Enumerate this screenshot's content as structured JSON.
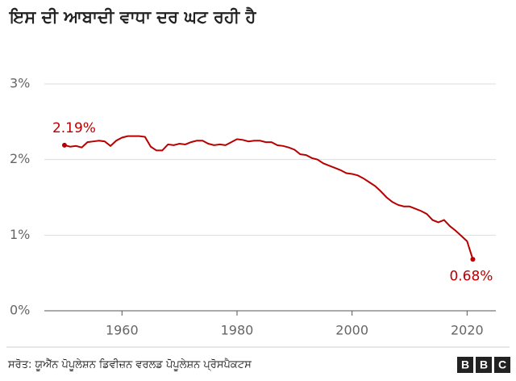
{
  "chart_data": {
    "type": "line",
    "title": "ਇਸ ਦੀ ਆਬਾਦੀ ਵਾਧਾ ਦਰ ਘਟ ਰਹੀ ਹੈ",
    "source": "ਸਰੋਤ: ਯੂਐੱਨ ਪੋਪੂਲੇਸ਼ਨ ਡਿਵੀਜ਼ਨ ਵਰਲਡ ਪੋਪੂਲੇਸ਼ਨ ਪ੍ਰੋਸਪੈਕਟਸ",
    "logo": [
      "B",
      "B",
      "C"
    ],
    "color": "#b80000",
    "x": [
      1950,
      1951,
      1952,
      1953,
      1954,
      1955,
      1956,
      1957,
      1958,
      1959,
      1960,
      1961,
      1962,
      1963,
      1964,
      1965,
      1966,
      1967,
      1968,
      1969,
      1970,
      1971,
      1972,
      1973,
      1974,
      1975,
      1976,
      1977,
      1978,
      1979,
      1980,
      1981,
      1982,
      1983,
      1984,
      1985,
      1986,
      1987,
      1988,
      1989,
      1990,
      1991,
      1992,
      1993,
      1994,
      1995,
      1996,
      1997,
      1998,
      1999,
      2000,
      2001,
      2002,
      2003,
      2004,
      2005,
      2006,
      2007,
      2008,
      2009,
      2010,
      2011,
      2012,
      2013,
      2014,
      2015,
      2016,
      2017,
      2018,
      2019,
      2020,
      2021
    ],
    "values": [
      2.19,
      2.17,
      2.18,
      2.16,
      2.23,
      2.24,
      2.25,
      2.24,
      2.18,
      2.25,
      2.29,
      2.31,
      2.31,
      2.31,
      2.3,
      2.17,
      2.12,
      2.12,
      2.2,
      2.19,
      2.21,
      2.2,
      2.23,
      2.25,
      2.25,
      2.21,
      2.19,
      2.2,
      2.19,
      2.23,
      2.27,
      2.26,
      2.24,
      2.25,
      2.25,
      2.23,
      2.23,
      2.19,
      2.18,
      2.16,
      2.13,
      2.07,
      2.06,
      2.02,
      2.0,
      1.95,
      1.92,
      1.89,
      1.86,
      1.82,
      1.81,
      1.79,
      1.75,
      1.7,
      1.65,
      1.58,
      1.5,
      1.44,
      1.4,
      1.38,
      1.38,
      1.35,
      1.32,
      1.28,
      1.2,
      1.17,
      1.2,
      1.12,
      1.06,
      0.99,
      0.92,
      0.68
    ],
    "value_labels": [
      "2.19%",
      null,
      null,
      null,
      null,
      null,
      null,
      null,
      null,
      null,
      null,
      null,
      null,
      null,
      null,
      null,
      null,
      null,
      null,
      null,
      null,
      null,
      null,
      null,
      null,
      null,
      null,
      null,
      null,
      null,
      null,
      null,
      null,
      null,
      null,
      null,
      null,
      null,
      null,
      null,
      null,
      null,
      null,
      null,
      null,
      null,
      null,
      null,
      null,
      null,
      null,
      null,
      null,
      null,
      null,
      null,
      null,
      null,
      null,
      null,
      null,
      null,
      null,
      null,
      null,
      null,
      null,
      null,
      null,
      null,
      null,
      "0.68%"
    ],
    "xlim": [
      1946.5,
      2025
    ],
    "xticks": [
      1960,
      1980,
      2000,
      2020
    ],
    "ylim": [
      0,
      3
    ],
    "yticks": [
      {
        "value": 0,
        "label": "0%"
      },
      {
        "value": 1,
        "label": "1%"
      },
      {
        "value": 2,
        "label": "2%"
      },
      {
        "value": 3,
        "label": "3%"
      }
    ],
    "grid": true
  }
}
